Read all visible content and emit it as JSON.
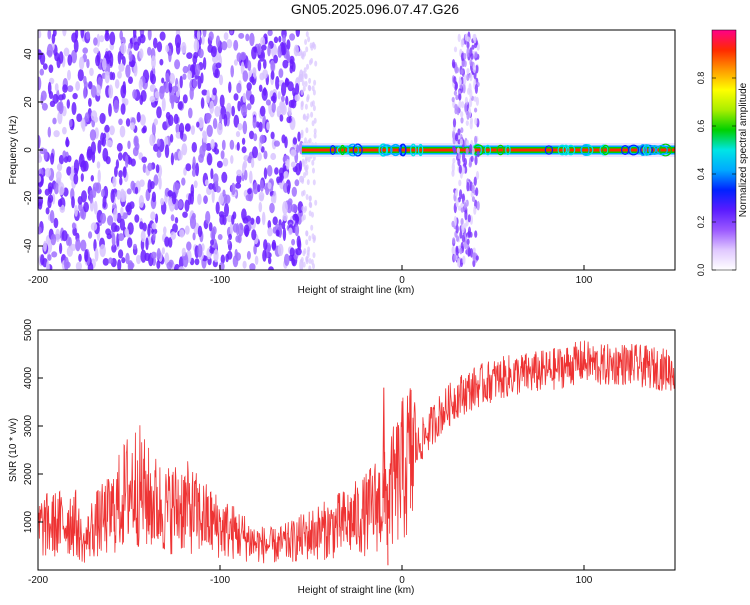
{
  "title": "GN05.2025.096.07.47.G26",
  "chart_data": [
    {
      "type": "heatmap",
      "xlabel": "Height of straight line (km)",
      "ylabel": "Frequency (Hz)",
      "xlim": [
        -200,
        150
      ],
      "ylim": [
        -50,
        50
      ],
      "xticks": [
        -200,
        -100,
        0,
        100
      ],
      "yticks": [
        -40,
        -20,
        0,
        20,
        40
      ],
      "colorbar": {
        "label": "Normalized spectral amplitude",
        "range": [
          0.0,
          1.0
        ],
        "ticks": [
          "0.0",
          "0.2",
          "0.4",
          "0.6",
          "0.8"
        ],
        "colors": [
          "#ffffff",
          "#e0c8ff",
          "#9b59ff",
          "#5a1cff",
          "#0022ff",
          "#00aaff",
          "#00e5e5",
          "#00d000",
          "#aaee00",
          "#ffff00",
          "#ff9900",
          "#ff2a00",
          "#ff0088"
        ]
      },
      "regions": [
        {
          "x_from": -200,
          "x_to": -55,
          "freq_from": -50,
          "freq_to": 50,
          "pattern": "broadband noise",
          "amplitude": 0.15
        },
        {
          "x_from": -55,
          "x_to": 150,
          "freq_center": 0,
          "pattern": "narrow tone near 0 Hz",
          "amplitude": 0.9
        },
        {
          "x_from": 28,
          "x_to": 42,
          "freq_from": -48,
          "freq_to": 48,
          "pattern": "broadband burst",
          "amplitude": 0.2
        }
      ]
    },
    {
      "type": "line",
      "xlabel": "Height of straight line (km)",
      "ylabel": "SNR (10 * v/v)",
      "xlim": [
        -200,
        150
      ],
      "ylim": [
        0,
        5000
      ],
      "xticks": [
        -200,
        -100,
        0,
        100
      ],
      "yticks": [
        1000,
        2000,
        3000,
        4000,
        5000
      ],
      "color": "#ee3333",
      "series": [
        {
          "x": [
            -200,
            -190,
            -180,
            -175,
            -170,
            -160,
            -150,
            -145,
            -140,
            -130,
            -120,
            -110,
            -100,
            -90,
            -80,
            -70,
            -60,
            -50,
            -40,
            -30,
            -20,
            -15,
            -10,
            -5,
            0,
            10,
            20,
            30,
            40,
            50,
            60,
            70,
            80,
            90,
            100,
            110,
            120,
            130,
            140,
            150
          ],
          "y": [
            900,
            950,
            1050,
            500,
            900,
            1150,
            1700,
            1800,
            1500,
            1250,
            1350,
            1100,
            900,
            750,
            550,
            500,
            600,
            750,
            850,
            1000,
            1150,
            1350,
            1400,
            1700,
            2050,
            2650,
            3200,
            3600,
            3800,
            3950,
            4050,
            4100,
            4150,
            4250,
            4350,
            4250,
            4300,
            4250,
            4200,
            4150
          ]
        }
      ],
      "annotations": [
        {
          "x": -10,
          "y": 3800,
          "text": ""
        }
      ]
    }
  ]
}
